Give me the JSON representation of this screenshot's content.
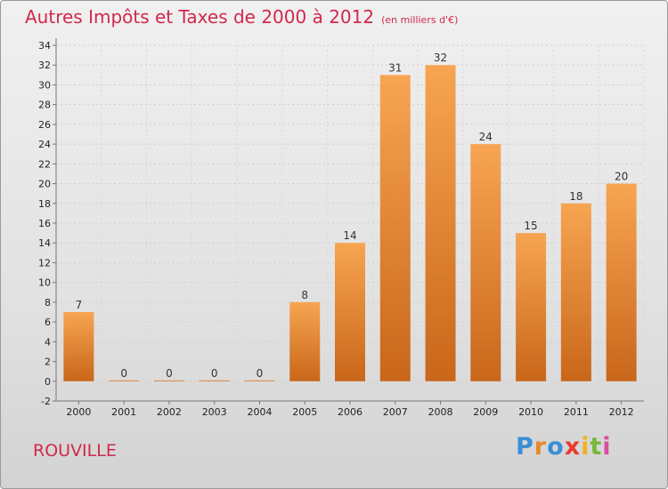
{
  "header": {
    "title": "Autres Impôts et Taxes de 2000 à 2012",
    "subtitle": "(en milliers d'€)"
  },
  "footer": {
    "commune": "ROUVILLE",
    "logo_letters": [
      "P",
      "r",
      "o",
      "x",
      "i",
      "t",
      "i"
    ],
    "logo_colors": [
      "#3a8fd6",
      "#e8892b",
      "#3a8fd6",
      "#e83c2c",
      "#f0b21e",
      "#7ab638",
      "#d94ea0"
    ]
  },
  "chart_data": {
    "type": "bar",
    "title": "Autres Impôts et Taxes de 2000 à 2012",
    "subtitle": "(en milliers d'€)",
    "categories": [
      "2000",
      "2001",
      "2002",
      "2003",
      "2004",
      "2005",
      "2006",
      "2007",
      "2008",
      "2009",
      "2010",
      "2011",
      "2012"
    ],
    "values": [
      7,
      0,
      0,
      0,
      0,
      8,
      14,
      31,
      32,
      24,
      15,
      18,
      20
    ],
    "data_labels": [
      "7",
      "0",
      "0",
      "0",
      "0",
      "8",
      "14",
      "31",
      "32",
      "24",
      "15",
      "18",
      "20"
    ],
    "y_ticks": [
      "-2",
      "0",
      "2",
      "4",
      "6",
      "8",
      "10",
      "12",
      "14",
      "16",
      "18",
      "20",
      "22",
      "24",
      "26",
      "28",
      "30",
      "32",
      "34"
    ],
    "ylim": [
      -2,
      34
    ],
    "grid": true,
    "bar_color_top": "#f7a552",
    "bar_color_bottom": "#c9661a",
    "legend": "none"
  }
}
